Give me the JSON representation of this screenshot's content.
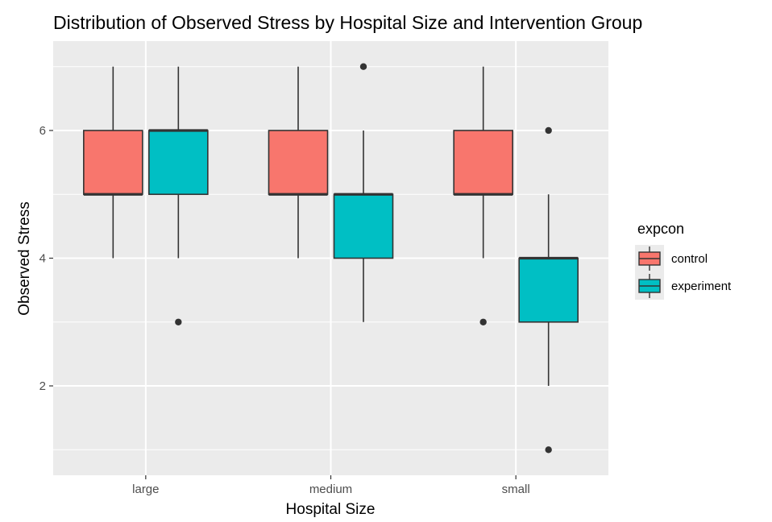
{
  "chart_data": {
    "type": "box",
    "title": "Distribution of Observed Stress by Hospital Size and Intervention Group",
    "xlabel": "Hospital Size",
    "ylabel": "Observed Stress",
    "categories": [
      "large",
      "medium",
      "small"
    ],
    "y_ticks": [
      2,
      4,
      6
    ],
    "ylim": [
      0.6,
      7.4
    ],
    "grid": true,
    "legend": {
      "title": "expcon",
      "position": "right",
      "entries": [
        "control",
        "experiment"
      ]
    },
    "series": [
      {
        "name": "control",
        "color": "#F8766D",
        "boxes": [
          {
            "category": "large",
            "min": 4,
            "q1": 5,
            "median": 5,
            "q3": 6,
            "max": 7,
            "outliers": []
          },
          {
            "category": "medium",
            "min": 4,
            "q1": 5,
            "median": 5,
            "q3": 6,
            "max": 7,
            "outliers": []
          },
          {
            "category": "small",
            "min": 4,
            "q1": 5,
            "median": 5,
            "q3": 6,
            "max": 7,
            "outliers": [
              3
            ]
          }
        ]
      },
      {
        "name": "experiment",
        "color": "#00BFC4",
        "boxes": [
          {
            "category": "large",
            "min": 4,
            "q1": 5,
            "median": 6,
            "q3": 6,
            "max": 7,
            "outliers": [
              3
            ]
          },
          {
            "category": "medium",
            "min": 3,
            "q1": 4,
            "median": 5,
            "q3": 5,
            "max": 6,
            "outliers": [
              7
            ]
          },
          {
            "category": "small",
            "min": 2,
            "q1": 3,
            "median": 4,
            "q3": 4,
            "max": 5,
            "outliers": [
              6,
              1
            ]
          }
        ]
      }
    ]
  }
}
